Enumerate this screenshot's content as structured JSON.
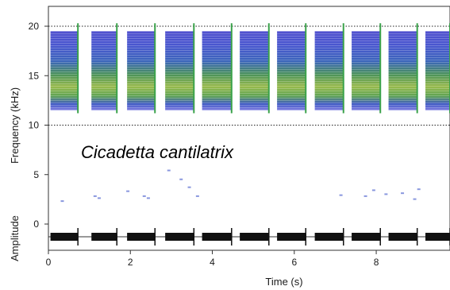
{
  "chart_data": {
    "type": "spectrogram",
    "title": "",
    "annotation": "Cicadetta cantilatrix",
    "xlabel": "Time (s)",
    "ylabel_spectrogram": "Frequency (kHz)",
    "ylabel_waveform": "Amplitude",
    "xlim": [
      0,
      9.8
    ],
    "ylim_frequency": [
      -0.5,
      21
    ],
    "x_ticks": [
      "0",
      "2",
      "4",
      "6",
      "8"
    ],
    "x_tick_values": [
      0,
      2,
      4,
      6,
      8
    ],
    "y_ticks": [
      "0",
      "5",
      "10",
      "15",
      "20"
    ],
    "y_tick_values": [
      0,
      5,
      10,
      15,
      20
    ],
    "reference_lines_khz": [
      10,
      20
    ],
    "song_band_khz": [
      11.5,
      19.5
    ],
    "phrases": [
      {
        "start_s": 0.05,
        "end_s": 0.72
      },
      {
        "start_s": 1.05,
        "end_s": 1.67
      },
      {
        "start_s": 1.92,
        "end_s": 2.6
      },
      {
        "start_s": 2.85,
        "end_s": 3.55
      },
      {
        "start_s": 3.75,
        "end_s": 4.47
      },
      {
        "start_s": 4.67,
        "end_s": 5.38
      },
      {
        "start_s": 5.58,
        "end_s": 6.28
      },
      {
        "start_s": 6.5,
        "end_s": 7.2
      },
      {
        "start_s": 7.4,
        "end_s": 8.1
      },
      {
        "start_s": 8.3,
        "end_s": 9.0
      },
      {
        "start_s": 9.2,
        "end_s": 9.8
      }
    ],
    "colors": {
      "low": "#2b2bc8",
      "mid": "#3c8a4a",
      "high": "#c8d23c",
      "waveform": "#111111"
    }
  }
}
